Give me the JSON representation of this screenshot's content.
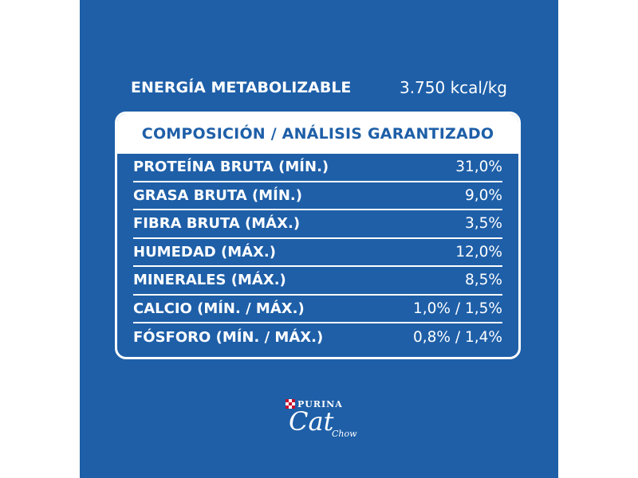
{
  "energy": {
    "label": "ENERGÍA METABOLIZABLE",
    "value": "3.750 kcal/kg"
  },
  "table": {
    "header": "COMPOSICIÓN / ANÁLISIS GARANTIZADO",
    "rows": [
      {
        "label": "PROTEÍNA BRUTA (MÍN.)",
        "value": "31,0%"
      },
      {
        "label": "GRASA BRUTA (MÍN.)",
        "value": "9,0%"
      },
      {
        "label": "FIBRA BRUTA (MÁX.)",
        "value": "3,5%"
      },
      {
        "label": "HUMEDAD (MÁX.)",
        "value": "12,0%"
      },
      {
        "label": "MINERALES (MÁX.)",
        "value": "8,5%"
      },
      {
        "label": "CALCIO (MÍN. / MÁX.)",
        "value": "1,0% / 1,5%"
      },
      {
        "label": "FÓSFORO (MÍN. / MÁX.)",
        "value": "0,8% / 1,4%"
      }
    ]
  },
  "logo": {
    "brand": "PURINA",
    "product": "Cat",
    "product_sub": "Chow"
  },
  "colors": {
    "background": "#1e5fa8",
    "text": "#ffffff",
    "purina_red": "#c8102e"
  }
}
